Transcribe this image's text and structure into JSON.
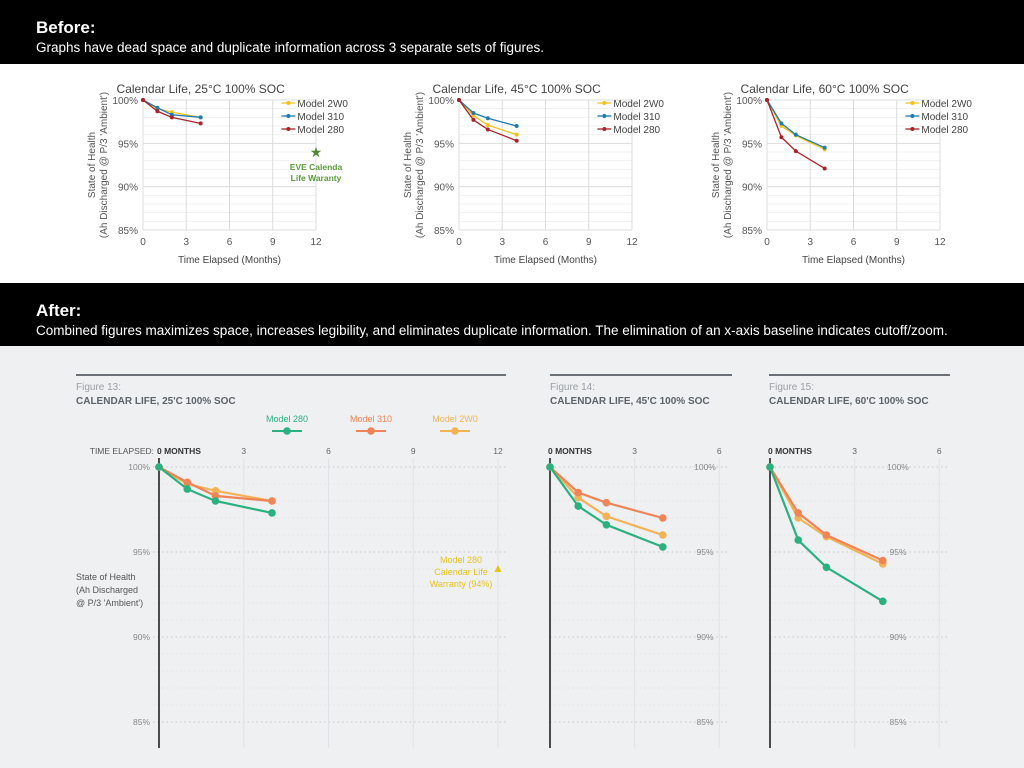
{
  "before": {
    "heading": "Before:",
    "description": "Graphs have dead space and duplicate information across 3 separate sets of figures.",
    "ylabel": [
      "State of Health",
      "(Ah Discharged @ P/3 'Ambient')"
    ],
    "xlabel": "Time Elapsed (Months)",
    "annotation": [
      "EVE Calenda",
      "Life Waranty"
    ],
    "titles": [
      "Calendar Life, 25°C 100% SOC",
      "Calendar Life, 45°C 100% SOC",
      "Calendar Life, 60°C 100% SOC"
    ],
    "colors": {
      "Model 2W0": "#f2c21b",
      "Model 310": "#1f7bb0",
      "Model 280": "#a8232a",
      "annotation": "#5a9a3a"
    },
    "legend_order": [
      "Model 2W0",
      "Model 310",
      "Model 280"
    ]
  },
  "after": {
    "heading": "After:",
    "description": "Combined figures maximizes space, increases legibility, and eliminates duplicate information. The elimination of an x-axis baseline indicates cutoff/zoom.",
    "figure_labels": [
      "Figure 13:",
      "Figure 14:",
      "Figure 15:"
    ],
    "titles": [
      "CALENDAR LIFE, 25'C 100% SOC",
      "CALENDAR LIFE, 45'C 100% SOC",
      "CALENDAR LIFE, 60'C 100% SOC"
    ],
    "time_prefix": "TIME ELAPSED:",
    "zero_label": "0  MONTHS",
    "ylabel": [
      "State of Health",
      "(Ah Discharged",
      "@ P/3 'Ambient')"
    ],
    "annotation": [
      "Model 280",
      "Calendar Life",
      "Warranty (94%)"
    ],
    "colors": {
      "Model 280": "#2bb07f",
      "Model 310": "#ee8458",
      "Model 2W0": "#f2b357",
      "annotation": "#e8c21a"
    },
    "legend_order": [
      "Model 280",
      "Model 310",
      "Model 2W0"
    ]
  },
  "chart_data": [
    {
      "type": "line",
      "title": "Calendar Life, 25°C 100% SOC",
      "xlabel": "Time Elapsed (Months)",
      "ylabel": "State of Health (Ah Discharged @ P/3 'Ambient')",
      "x": [
        0,
        1,
        2,
        4
      ],
      "xlim": [
        0,
        12
      ],
      "xticks": [
        0,
        3,
        6,
        9,
        12
      ],
      "ylim": [
        85,
        100
      ],
      "yticks": [
        85,
        90,
        95,
        100
      ],
      "series": [
        {
          "name": "Model 2W0",
          "values": [
            100,
            99.0,
            98.6,
            98.0
          ]
        },
        {
          "name": "Model 310",
          "values": [
            100,
            99.1,
            98.3,
            98.0
          ]
        },
        {
          "name": "Model 280",
          "values": [
            100,
            98.7,
            98.0,
            97.3
          ]
        }
      ],
      "warranty": {
        "x": 12,
        "y": 94
      }
    },
    {
      "type": "line",
      "title": "Calendar Life, 45°C 100% SOC",
      "xlabel": "Time Elapsed (Months)",
      "ylabel": "State of Health (Ah Discharged @ P/3 'Ambient')",
      "x": [
        0,
        1,
        2,
        4
      ],
      "xlim": [
        0,
        12
      ],
      "xticks": [
        0,
        3,
        6,
        9,
        12
      ],
      "ylim": [
        85,
        100
      ],
      "yticks": [
        85,
        90,
        95,
        100
      ],
      "series": [
        {
          "name": "Model 2W0",
          "values": [
            100,
            98.2,
            97.1,
            96.0
          ]
        },
        {
          "name": "Model 310",
          "values": [
            100,
            98.5,
            97.9,
            97.0
          ]
        },
        {
          "name": "Model 280",
          "values": [
            100,
            97.7,
            96.6,
            95.3
          ]
        }
      ]
    },
    {
      "type": "line",
      "title": "Calendar Life, 60°C 100% SOC",
      "xlabel": "Time Elapsed (Months)",
      "ylabel": "State of Health (Ah Discharged @ P/3 'Ambient')",
      "x": [
        0,
        1,
        2,
        4
      ],
      "xlim": [
        0,
        12
      ],
      "xticks": [
        0,
        3,
        6,
        9,
        12
      ],
      "ylim": [
        85,
        100
      ],
      "yticks": [
        85,
        90,
        95,
        100
      ],
      "series": [
        {
          "name": "Model 2W0",
          "values": [
            100,
            97.0,
            95.9,
            94.3
          ]
        },
        {
          "name": "Model 310",
          "values": [
            100,
            97.3,
            96.0,
            94.5
          ]
        },
        {
          "name": "Model 280",
          "values": [
            100,
            95.7,
            94.1,
            92.1
          ]
        }
      ]
    }
  ]
}
